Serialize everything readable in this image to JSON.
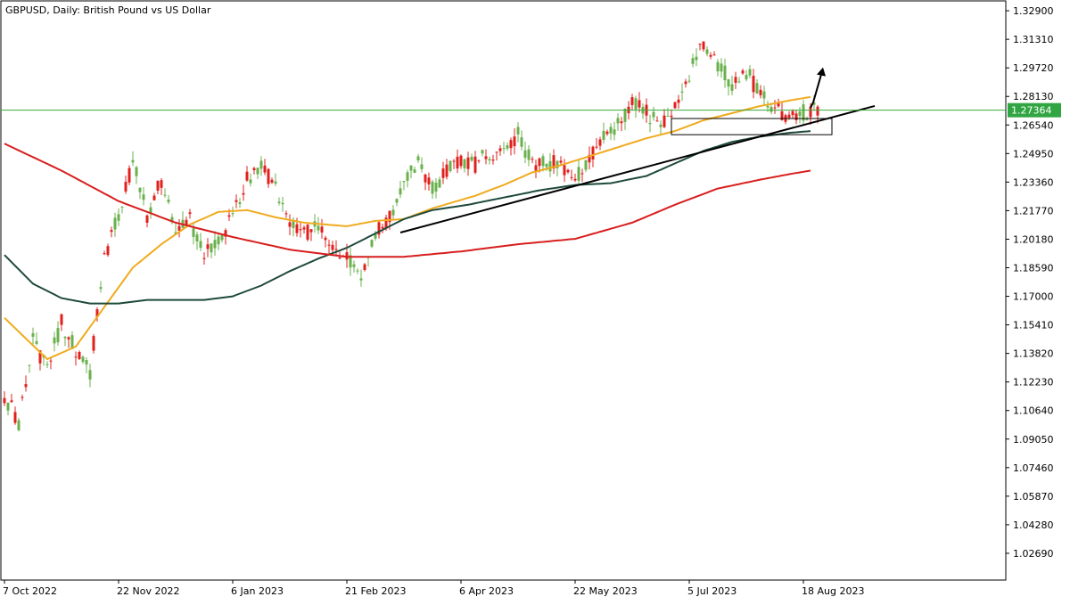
{
  "chart_data": {
    "type": "candlestick",
    "title": "GBPUSD, Daily:  British Pound vs US Dollar",
    "symbol": "GBPUSD",
    "timeframe": "Daily",
    "instrument_name": "British Pound vs US Dollar",
    "ylim": [
      1.012,
      1.3345
    ],
    "grid": false,
    "y_ticks": [
      "1.32900",
      "1.31310",
      "1.29720",
      "1.28130",
      "1.26540",
      "1.24950",
      "1.23360",
      "1.21770",
      "1.20180",
      "1.18590",
      "1.17000",
      "1.15410",
      "1.13820",
      "1.12230",
      "1.10640",
      "1.09050",
      "1.07460",
      "1.05870",
      "1.04280",
      "1.02690"
    ],
    "x_ticks": [
      {
        "date": "2022-10-07",
        "label": "7 Oct 2022"
      },
      {
        "date": "2022-11-22",
        "label": "22 Nov 2022"
      },
      {
        "date": "2023-01-06",
        "label": "6 Jan 2023"
      },
      {
        "date": "2023-02-21",
        "label": "21 Feb 2023"
      },
      {
        "date": "2023-04-06",
        "label": "6 Apr 2023"
      },
      {
        "date": "2023-05-22",
        "label": "22 May 2023"
      },
      {
        "date": "2023-07-05",
        "label": "5 Jul 2023"
      },
      {
        "date": "2023-08-18",
        "label": "18 Aug 2023"
      }
    ],
    "x_tick_index": [
      0,
      32,
      64,
      96,
      128,
      160,
      192,
      224
    ],
    "last_price": {
      "label": "1.27364",
      "value": 1.27364
    },
    "colors": {
      "bull": "#6ab04c",
      "bear": "#e0201c",
      "ma_fast": "#f0ab1e",
      "ma_mid": "#1e4a3a",
      "ma_slow": "#d81e1e",
      "price_line": "#3aa83a",
      "price_label_bg": "#31a542",
      "drawing": "#000000"
    },
    "price_anchors": [
      [
        0,
        1.115
      ],
      [
        4,
        1.1
      ],
      [
        8,
        1.145
      ],
      [
        12,
        1.13
      ],
      [
        16,
        1.155
      ],
      [
        20,
        1.14
      ],
      [
        24,
        1.128
      ],
      [
        28,
        1.19
      ],
      [
        32,
        1.215
      ],
      [
        36,
        1.245
      ],
      [
        40,
        1.215
      ],
      [
        44,
        1.235
      ],
      [
        48,
        1.205
      ],
      [
        52,
        1.212
      ],
      [
        56,
        1.195
      ],
      [
        60,
        1.2
      ],
      [
        64,
        1.215
      ],
      [
        68,
        1.235
      ],
      [
        72,
        1.245
      ],
      [
        76,
        1.23
      ],
      [
        80,
        1.21
      ],
      [
        84,
        1.205
      ],
      [
        88,
        1.208
      ],
      [
        92,
        1.2
      ],
      [
        96,
        1.192
      ],
      [
        100,
        1.182
      ],
      [
        104,
        1.205
      ],
      [
        108,
        1.215
      ],
      [
        112,
        1.233
      ],
      [
        116,
        1.243
      ],
      [
        120,
        1.23
      ],
      [
        124,
        1.24
      ],
      [
        128,
        1.245
      ],
      [
        132,
        1.243
      ],
      [
        136,
        1.25
      ],
      [
        140,
        1.248
      ],
      [
        144,
        1.26
      ],
      [
        148,
        1.243
      ],
      [
        152,
        1.245
      ],
      [
        156,
        1.243
      ],
      [
        160,
        1.235
      ],
      [
        164,
        1.247
      ],
      [
        168,
        1.26
      ],
      [
        172,
        1.265
      ],
      [
        176,
        1.278
      ],
      [
        180,
        1.272
      ],
      [
        184,
        1.265
      ],
      [
        188,
        1.278
      ],
      [
        192,
        1.295
      ],
      [
        196,
        1.31
      ],
      [
        200,
        1.3
      ],
      [
        204,
        1.288
      ],
      [
        208,
        1.295
      ],
      [
        212,
        1.282
      ],
      [
        216,
        1.275
      ],
      [
        220,
        1.27
      ],
      [
        222,
        1.27
      ],
      [
        226,
        1.274
      ],
      [
        228,
        1.2736
      ]
    ],
    "candle_seed": 20230818,
    "series": [
      {
        "name": "",
        "color": "#f0ab1e",
        "values": [
          [
            0,
            1.158
          ],
          [
            12,
            1.135
          ],
          [
            20,
            1.142
          ],
          [
            28,
            1.164
          ],
          [
            36,
            1.186
          ],
          [
            44,
            1.199
          ],
          [
            52,
            1.21
          ],
          [
            60,
            1.217
          ],
          [
            68,
            1.218
          ],
          [
            76,
            1.214
          ],
          [
            84,
            1.211
          ],
          [
            96,
            1.209
          ],
          [
            104,
            1.212
          ],
          [
            112,
            1.213
          ],
          [
            120,
            1.219
          ],
          [
            132,
            1.226
          ],
          [
            140,
            1.232
          ],
          [
            148,
            1.239
          ],
          [
            156,
            1.243
          ],
          [
            164,
            1.248
          ],
          [
            172,
            1.253
          ],
          [
            180,
            1.258
          ],
          [
            188,
            1.262
          ],
          [
            196,
            1.268
          ],
          [
            204,
            1.272
          ],
          [
            212,
            1.276
          ],
          [
            220,
            1.279
          ],
          [
            226,
            1.281
          ]
        ]
      },
      {
        "name": "",
        "color": "#1e4a3a",
        "values": [
          [
            0,
            1.193
          ],
          [
            8,
            1.177
          ],
          [
            16,
            1.169
          ],
          [
            24,
            1.166
          ],
          [
            32,
            1.166
          ],
          [
            40,
            1.168
          ],
          [
            48,
            1.168
          ],
          [
            56,
            1.168
          ],
          [
            64,
            1.17
          ],
          [
            72,
            1.176
          ],
          [
            80,
            1.184
          ],
          [
            88,
            1.191
          ],
          [
            96,
            1.197
          ],
          [
            104,
            1.205
          ],
          [
            112,
            1.213
          ],
          [
            120,
            1.218
          ],
          [
            130,
            1.221
          ],
          [
            140,
            1.225
          ],
          [
            150,
            1.229
          ],
          [
            160,
            1.232
          ],
          [
            170,
            1.233
          ],
          [
            180,
            1.237
          ],
          [
            188,
            1.244
          ],
          [
            196,
            1.251
          ],
          [
            204,
            1.256
          ],
          [
            212,
            1.259
          ],
          [
            220,
            1.261
          ],
          [
            226,
            1.262
          ]
        ]
      },
      {
        "name": "",
        "color": "#d81e1e",
        "values": [
          [
            0,
            1.255
          ],
          [
            16,
            1.24
          ],
          [
            32,
            1.223
          ],
          [
            48,
            1.211
          ],
          [
            64,
            1.203
          ],
          [
            80,
            1.196
          ],
          [
            96,
            1.192
          ],
          [
            112,
            1.192
          ],
          [
            128,
            1.195
          ],
          [
            144,
            1.199
          ],
          [
            160,
            1.202
          ],
          [
            176,
            1.211
          ],
          [
            188,
            1.221
          ],
          [
            200,
            1.23
          ],
          [
            212,
            1.235
          ],
          [
            220,
            1.238
          ],
          [
            226,
            1.24
          ]
        ]
      }
    ]
  }
}
